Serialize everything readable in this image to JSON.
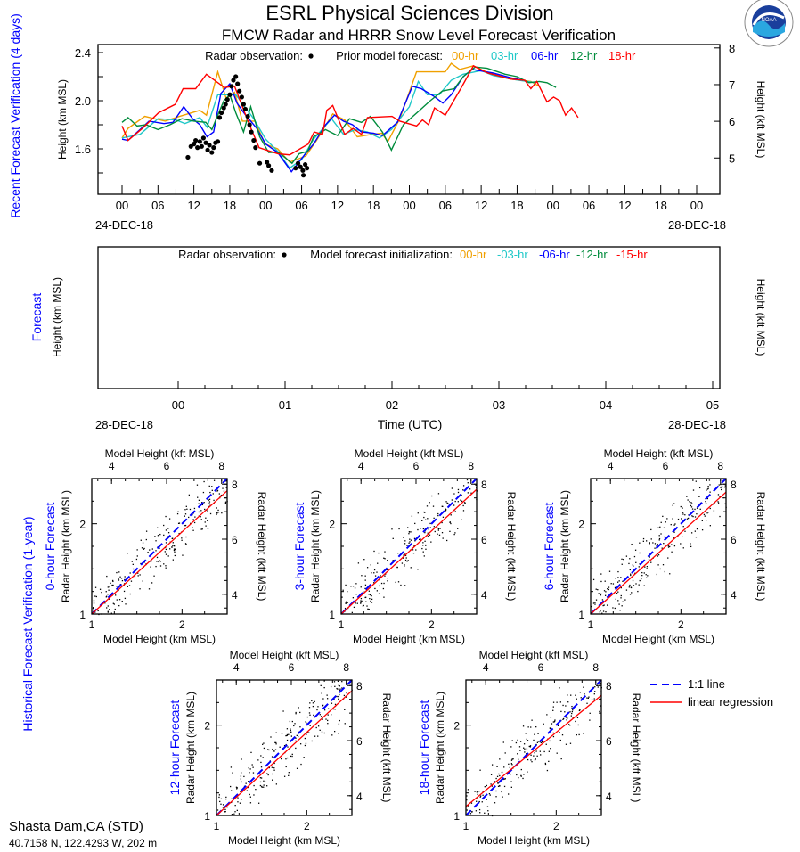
{
  "header": {
    "title": "ESRL Physical Sciences Division",
    "subtitle": "FMCW Radar and HRRR Snow Level Forecast Verification",
    "logo_text": "NOAA"
  },
  "station": {
    "name": "Shasta Dam,CA (STD)",
    "coords": "40.7158 N, 122.4293 W, 202 m"
  },
  "colors": {
    "h00": "#f0a000",
    "h03": "#20c8c8",
    "h06": "#0000ff",
    "h12": "#008c3c",
    "h18": "#ff0000",
    "label_blue": "#0000ff"
  },
  "chart_data": [
    {
      "type": "line",
      "panel_label": "Recent Forecast Verification (4 days)",
      "ylabel": "Height (km MSL)",
      "y2label": "Height (kft MSL)",
      "yticks": [
        "2.4",
        "2.0",
        "1.6"
      ],
      "ytick_values": [
        2.4,
        2.0,
        1.6
      ],
      "y2ticks": [
        "8",
        "7",
        "6",
        "5"
      ],
      "y2tick_values": [
        8,
        7,
        6,
        5
      ],
      "ylim": [
        1.22,
        2.47
      ],
      "xlim_hours": [
        -4,
        100
      ],
      "xticks": [
        "00",
        "06",
        "12",
        "18",
        "00",
        "06",
        "12",
        "18",
        "00",
        "06",
        "12",
        "18",
        "00",
        "06",
        "12",
        "18",
        "00"
      ],
      "start_date": "24-DEC-18",
      "end_date": "28-DEC-18",
      "legend": {
        "obs_label": "Radar observation:",
        "prior_label": "Prior model forecast:",
        "entries": [
          "00-hr",
          "03-hr",
          "06-hr",
          "12-hr",
          "18-hr"
        ]
      },
      "observations": [
        [
          11,
          1.53
        ],
        [
          11.5,
          1.62
        ],
        [
          12,
          1.64
        ],
        [
          12.3,
          1.67
        ],
        [
          12.6,
          1.61
        ],
        [
          13,
          1.66
        ],
        [
          13.3,
          1.62
        ],
        [
          13.6,
          1.69
        ],
        [
          14,
          1.65
        ],
        [
          14.3,
          1.59
        ],
        [
          14.6,
          1.63
        ],
        [
          15,
          1.57
        ],
        [
          15.3,
          1.61
        ],
        [
          15.6,
          1.65
        ],
        [
          16,
          1.66
        ],
        [
          16.3,
          1.86
        ],
        [
          16.6,
          1.9
        ],
        [
          17,
          1.94
        ],
        [
          17.3,
          1.97
        ],
        [
          17.6,
          2.01
        ],
        [
          18,
          2.05
        ],
        [
          18.3,
          2.12
        ],
        [
          18.6,
          2.17
        ],
        [
          19,
          2.2
        ],
        [
          19.3,
          2.14
        ],
        [
          19.6,
          2.08
        ],
        [
          20,
          2.03
        ],
        [
          20.3,
          1.97
        ],
        [
          20.6,
          1.93
        ],
        [
          21,
          1.87
        ],
        [
          21.3,
          1.8
        ],
        [
          21.6,
          1.74
        ],
        [
          22,
          1.67
        ],
        [
          22.3,
          1.61
        ],
        [
          23,
          1.48
        ],
        [
          24.2,
          1.49
        ],
        [
          24.5,
          1.46
        ],
        [
          25,
          1.42
        ],
        [
          29,
          1.44
        ],
        [
          29.4,
          1.48
        ],
        [
          29.8,
          1.45
        ],
        [
          30.2,
          1.42
        ],
        [
          30.6,
          1.47
        ],
        [
          30.9,
          1.44
        ],
        [
          30.3,
          1.38
        ]
      ],
      "series": [
        {
          "name": "00-hr",
          "points": [
            [
              0,
              1.69
            ],
            [
              1,
              1.77
            ],
            [
              3.8,
              1.87
            ],
            [
              5.5,
              1.85
            ],
            [
              7.2,
              1.83
            ],
            [
              9.6,
              1.87
            ],
            [
              13,
              1.92
            ],
            [
              14.1,
              1.88
            ],
            [
              16,
              2.24
            ],
            [
              17.4,
              2.02
            ],
            [
              18.8,
              2.07
            ],
            [
              20.1,
              1.83
            ],
            [
              22.2,
              1.83
            ],
            [
              23.9,
              1.64
            ],
            [
              26,
              1.6
            ],
            [
              28,
              1.49
            ],
            [
              30.7,
              1.54
            ],
            [
              32.5,
              1.67
            ],
            [
              35.2,
              1.89
            ],
            [
              37.2,
              1.84
            ],
            [
              39.3,
              1.7
            ],
            [
              41.7,
              1.72
            ],
            [
              43.4,
              1.73
            ],
            [
              44.4,
              1.66
            ],
            [
              46.4,
              1.85
            ],
            [
              49.2,
              2.24
            ],
            [
              50.2,
              2.24
            ],
            [
              52.6,
              2.24
            ],
            [
              54,
              2.24
            ],
            [
              55,
              2.31
            ],
            [
              56.4,
              2.26
            ],
            [
              58.7,
              2.29
            ],
            [
              60.8,
              2.24
            ],
            [
              62.8,
              2.21
            ],
            [
              64.9,
              2.18
            ],
            [
              68.3,
              2.16
            ],
            [
              69.7,
              2.12
            ]
          ]
        },
        {
          "name": "03-hr",
          "points": [
            [
              0,
              1.69
            ],
            [
              3,
              1.72
            ],
            [
              6,
              1.85
            ],
            [
              9,
              1.84
            ],
            [
              10.5,
              1.81
            ],
            [
              13,
              1.86
            ],
            [
              14.2,
              1.78
            ],
            [
              16,
              2.05
            ],
            [
              17.5,
              2.05
            ],
            [
              19,
              2.05
            ],
            [
              20.5,
              1.95
            ],
            [
              22,
              1.85
            ],
            [
              24,
              1.68
            ],
            [
              26,
              1.58
            ],
            [
              28,
              1.44
            ],
            [
              30,
              1.51
            ],
            [
              32,
              1.68
            ],
            [
              35,
              1.85
            ],
            [
              37,
              1.72
            ],
            [
              39,
              1.76
            ],
            [
              41,
              1.74
            ],
            [
              43,
              1.69
            ],
            [
              45,
              1.76
            ],
            [
              48,
              1.95
            ],
            [
              49.5,
              2.16
            ],
            [
              51,
              2.05
            ],
            [
              53,
              2.05
            ],
            [
              55,
              2.17
            ],
            [
              57,
              2.22
            ],
            [
              60,
              2.25
            ],
            [
              62,
              2.21
            ],
            [
              65,
              2.18
            ],
            [
              69,
              2.15
            ]
          ]
        },
        {
          "name": "06-hr",
          "points": [
            [
              0,
              1.68
            ],
            [
              1,
              1.67
            ],
            [
              3,
              1.76
            ],
            [
              4.5,
              1.83
            ],
            [
              7,
              1.81
            ],
            [
              8.5,
              1.82
            ],
            [
              10.3,
              1.95
            ],
            [
              11.8,
              1.85
            ],
            [
              13,
              1.8
            ],
            [
              14.2,
              1.7
            ],
            [
              15.3,
              1.74
            ],
            [
              16.5,
              2.06
            ],
            [
              18,
              2.14
            ],
            [
              19.2,
              1.98
            ],
            [
              20.5,
              1.89
            ],
            [
              22.5,
              1.77
            ],
            [
              24,
              1.64
            ],
            [
              26,
              1.57
            ],
            [
              28.3,
              1.41
            ],
            [
              30,
              1.52
            ],
            [
              32,
              1.64
            ],
            [
              34,
              1.8
            ],
            [
              35.5,
              1.88
            ],
            [
              37,
              1.83
            ],
            [
              38.5,
              1.8
            ],
            [
              40,
              1.74
            ],
            [
              42,
              1.73
            ],
            [
              43.5,
              1.71
            ],
            [
              46,
              1.82
            ],
            [
              48.5,
              2.12
            ],
            [
              50,
              2.1
            ],
            [
              52,
              2.04
            ],
            [
              53.6,
              1.98
            ],
            [
              55,
              2.05
            ],
            [
              57,
              2.2
            ],
            [
              58.5,
              2.26
            ],
            [
              62,
              2.23
            ],
            [
              65,
              2.19
            ],
            [
              67,
              2.17
            ]
          ]
        },
        {
          "name": "12-hr",
          "points": [
            [
              0,
              1.82
            ],
            [
              1,
              1.86
            ],
            [
              2.5,
              1.79
            ],
            [
              4,
              1.8
            ],
            [
              6,
              1.76
            ],
            [
              8,
              1.8
            ],
            [
              10,
              1.85
            ],
            [
              12,
              1.83
            ],
            [
              14,
              1.82
            ],
            [
              15,
              1.76
            ],
            [
              17,
              2.0
            ],
            [
              18,
              2.05
            ],
            [
              19,
              1.9
            ],
            [
              20.3,
              1.74
            ],
            [
              21.5,
              1.95
            ],
            [
              23,
              1.7
            ],
            [
              24.5,
              1.57
            ],
            [
              26.2,
              1.57
            ],
            [
              28.4,
              1.48
            ],
            [
              29.6,
              1.56
            ],
            [
              31,
              1.58
            ],
            [
              32,
              1.7
            ],
            [
              34,
              1.76
            ],
            [
              36,
              1.71
            ],
            [
              38,
              1.85
            ],
            [
              40,
              1.82
            ],
            [
              41.5,
              1.87
            ],
            [
              43.5,
              1.74
            ],
            [
              45,
              1.59
            ],
            [
              47,
              1.8
            ],
            [
              49.5,
              1.91
            ],
            [
              51.5,
              2.0
            ],
            [
              53.5,
              2.08
            ],
            [
              55.5,
              2.1
            ],
            [
              57,
              2.2
            ],
            [
              59,
              2.28
            ],
            [
              61,
              2.27
            ],
            [
              64,
              2.22
            ],
            [
              66,
              2.2
            ],
            [
              68,
              2.15
            ],
            [
              69.7,
              2.16
            ],
            [
              71,
              2.15
            ],
            [
              72.5,
              2.11
            ]
          ]
        },
        {
          "name": "18-hr",
          "points": [
            [
              0,
              1.79
            ],
            [
              1,
              1.67
            ],
            [
              3.4,
              1.77
            ],
            [
              6.1,
              1.9
            ],
            [
              8.9,
              1.97
            ],
            [
              10.2,
              2.1
            ],
            [
              12.3,
              2.1
            ],
            [
              14.1,
              2.22
            ],
            [
              17.1,
              2.11
            ],
            [
              18.8,
              2.12
            ],
            [
              21.2,
              1.81
            ],
            [
              22.9,
              1.61
            ],
            [
              26,
              1.56
            ],
            [
              28,
              1.55
            ],
            [
              31.1,
              1.64
            ],
            [
              32.1,
              1.74
            ],
            [
              33.5,
              1.72
            ],
            [
              34.2,
              1.92
            ],
            [
              35.2,
              1.96
            ],
            [
              37.2,
              1.72
            ],
            [
              38.6,
              1.77
            ],
            [
              40,
              1.72
            ],
            [
              41,
              1.86
            ],
            [
              45.1,
              1.87
            ],
            [
              46.4,
              1.83
            ],
            [
              49.2,
              1.79
            ],
            [
              50.2,
              1.84
            ],
            [
              51.2,
              1.8
            ],
            [
              52.2,
              1.94
            ],
            [
              54,
              1.88
            ],
            [
              56.7,
              2.11
            ],
            [
              58.7,
              2.29
            ],
            [
              61.1,
              2.23
            ],
            [
              64.9,
              2.18
            ],
            [
              67.3,
              2.17
            ],
            [
              68.3,
              2.1
            ],
            [
              69.3,
              2.16
            ],
            [
              71,
              1.99
            ],
            [
              72.1,
              2.03
            ],
            [
              73.1,
              2.0
            ],
            [
              74.1,
              1.88
            ],
            [
              75.1,
              1.94
            ],
            [
              76.2,
              1.86
            ]
          ]
        }
      ]
    },
    {
      "type": "line",
      "panel_label": "Forecast",
      "ylabel": "Height (km MSL)",
      "y2label": "Height (kft MSL)",
      "xlabel": "Time (UTC)",
      "xticks": [
        "00",
        "01",
        "02",
        "03",
        "04",
        "05"
      ],
      "start_date": "28-DEC-18",
      "end_date": "28-DEC-18",
      "legend": {
        "obs_label": "Radar observation:",
        "init_label": "Model forecast initialization:",
        "entries": [
          "00-hr",
          "-03-hr",
          "-06-hr",
          "-12-hr",
          "-15-hr"
        ]
      },
      "series": []
    },
    {
      "type": "scatter",
      "group_label": "Historical Forecast Verification (1-year)",
      "xlabel": "Model Height (km MSL)",
      "x2label": "Model Height (kft MSL)",
      "ylabel": "Radar Height (km MSL)",
      "y2label": "Radar Height (kft MSL)",
      "xlim": [
        1,
        2.5
      ],
      "ylim": [
        1,
        2.5
      ],
      "km_ticks": [
        "1",
        "2"
      ],
      "kft_ticks": [
        "4",
        "6",
        "8"
      ],
      "legend": {
        "one_to_one": "1:1 line",
        "regression": "linear regression"
      },
      "panels": [
        {
          "title": "0-hour Forecast",
          "regression": {
            "slope": 0.91,
            "intercept": 0.09
          },
          "seed": 11
        },
        {
          "title": "3-hour Forecast",
          "regression": {
            "slope": 0.92,
            "intercept": 0.08
          },
          "seed": 23
        },
        {
          "title": "6-hour Forecast",
          "regression": {
            "slope": 0.9,
            "intercept": 0.1
          },
          "seed": 37
        },
        {
          "title": "12-hour Forecast",
          "regression": {
            "slope": 0.92,
            "intercept": 0.08
          },
          "seed": 41
        },
        {
          "title": "18-hour Forecast",
          "regression": {
            "slope": 0.82,
            "intercept": 0.28
          },
          "seed": 53
        }
      ]
    }
  ]
}
